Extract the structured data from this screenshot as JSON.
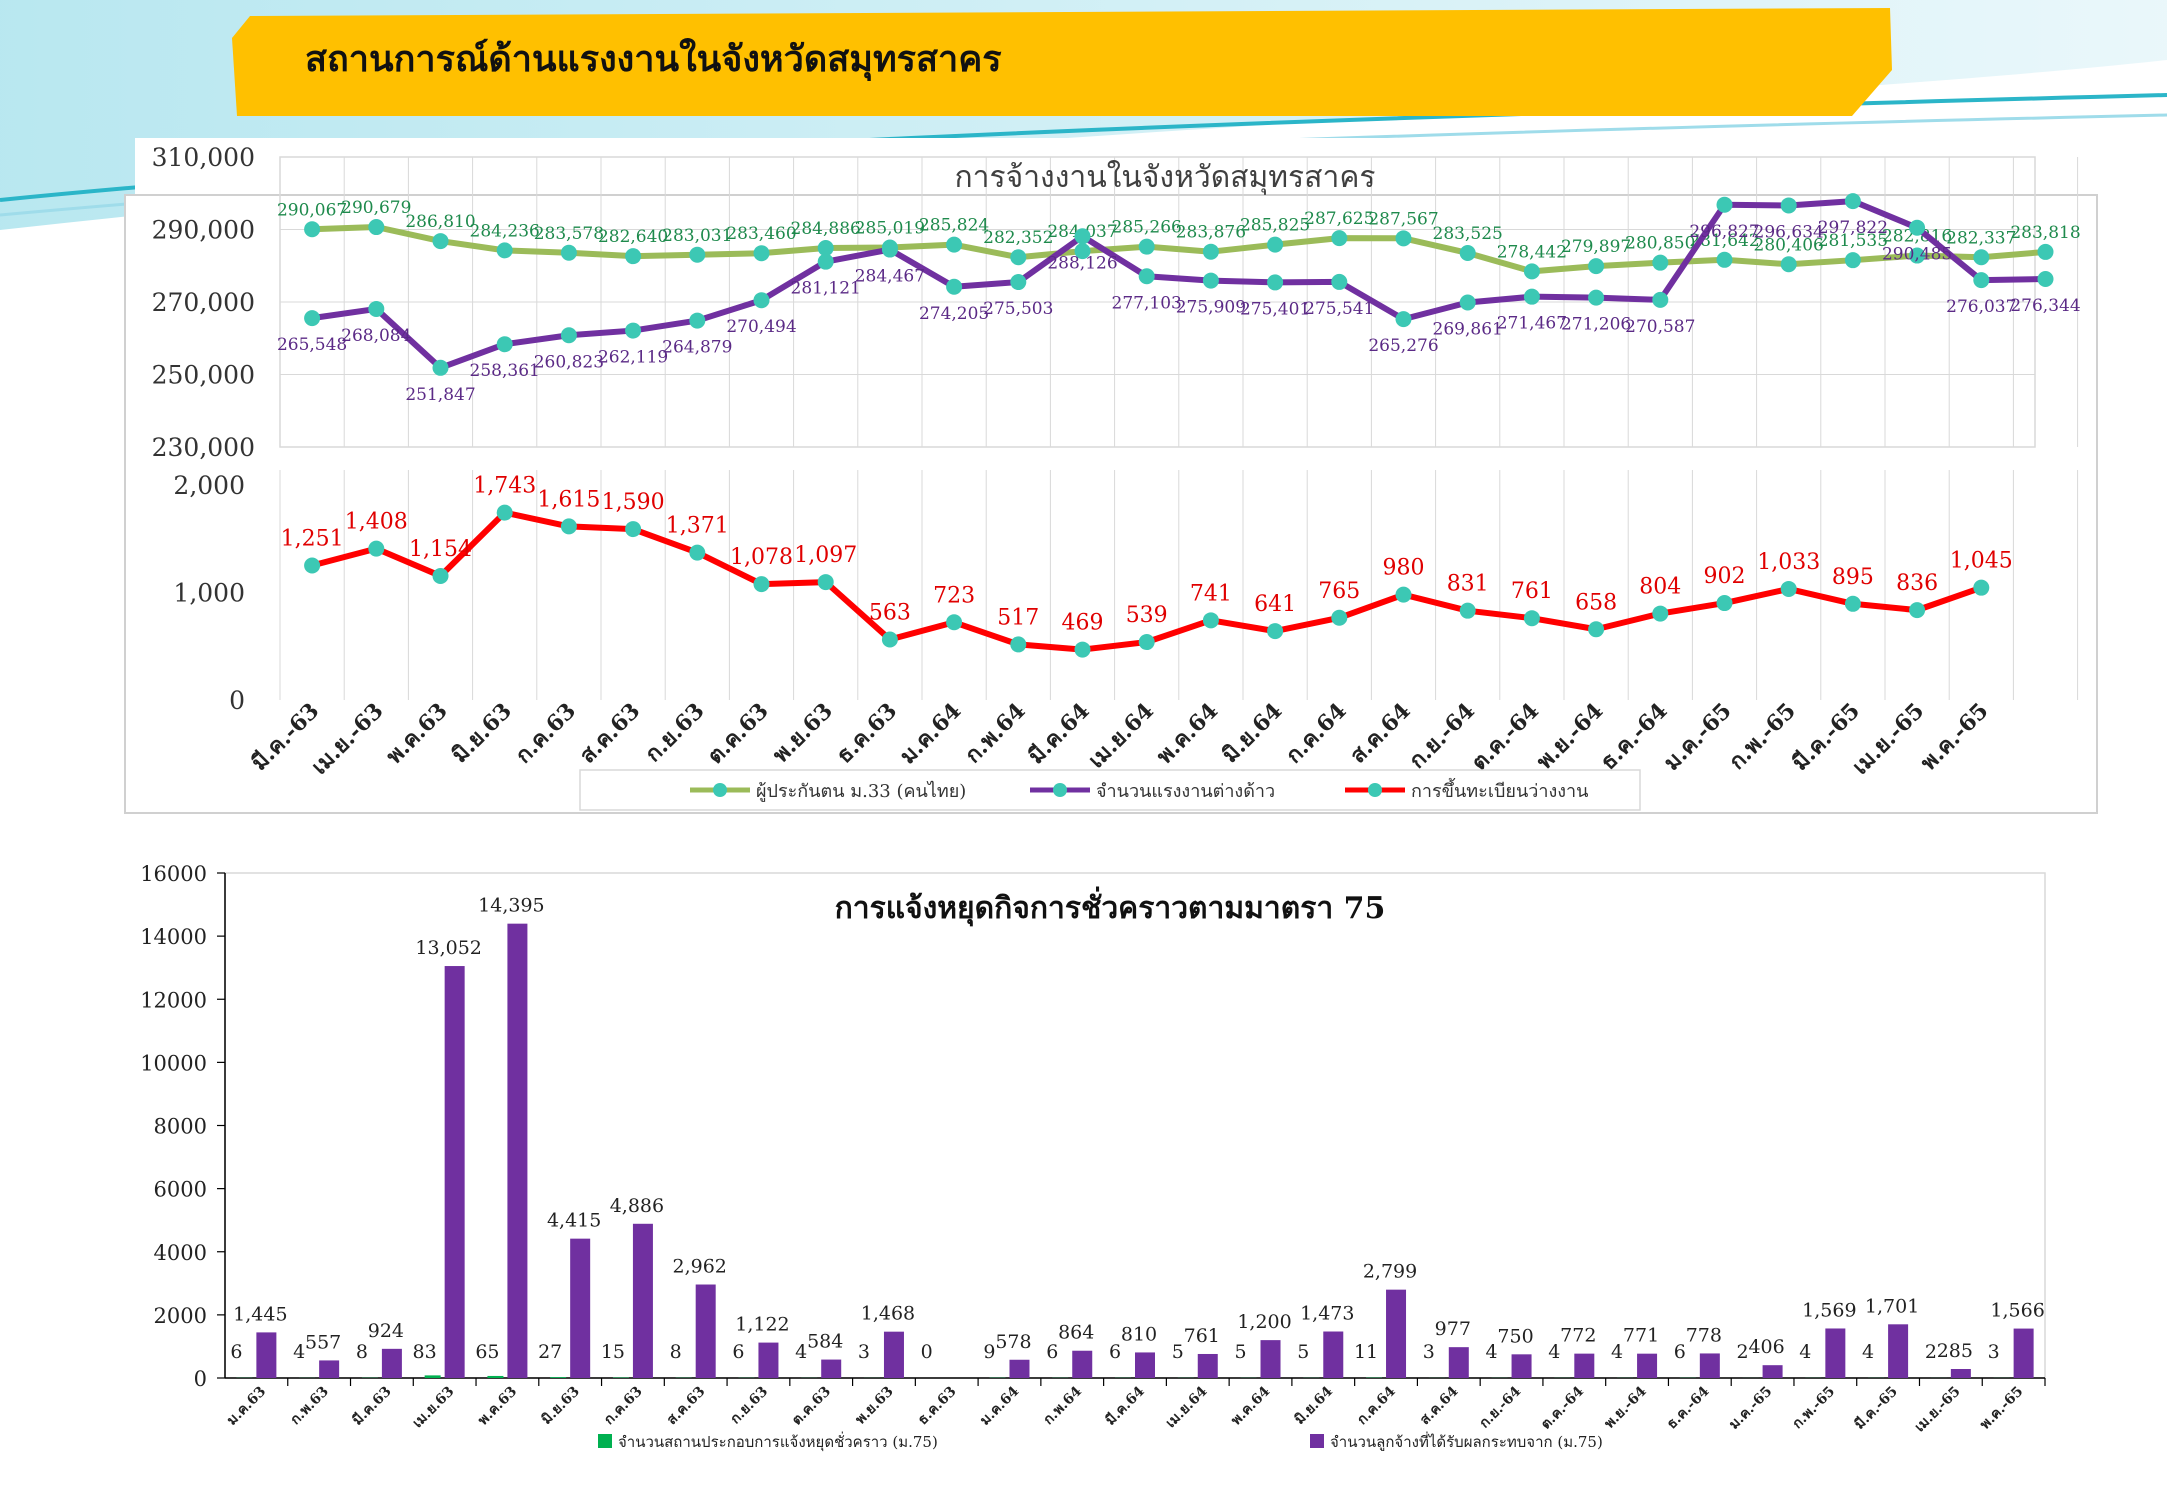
{
  "header": {
    "title": "สถานการณ์ด้านแรงงานในจังหวัดสมุทรสาคร"
  },
  "colors": {
    "banner": "#FFC000",
    "teal": "#2BB5C8",
    "olive": "#9BBB59",
    "purple": "#7030A0",
    "red": "#FF0000",
    "marker": "#3CC8B4",
    "green_bar": "#00B050"
  },
  "chart_data": [
    {
      "type": "line",
      "title": "การจ้างงานในจังหวัดสมุทรสาคร",
      "ylim": [
        230000,
        310000
      ],
      "yticks": [
        "310,000",
        "290,000",
        "270,000",
        "250,000",
        "230,000"
      ],
      "series": [
        {
          "name": "ผู้ประกันตน ม.33 (คนไทย)",
          "color": "#9BBB59",
          "values": [
            290067,
            290679,
            286810,
            284236,
            283578,
            282640,
            283031,
            283460,
            284886,
            285019,
            285824,
            282352,
            284037,
            285266,
            283876,
            285825,
            287625,
            287567,
            283525,
            278442,
            279897,
            280850,
            281642,
            280406,
            281535,
            282816,
            282337,
            283818
          ],
          "labels": [
            "290,067",
            "290,679",
            "286,810",
            "284,236",
            "283,578",
            "282,640",
            "283,031",
            "283,460",
            "284,886",
            "285,019",
            "285,824",
            "282,352",
            "284,037",
            "285,266",
            "283,876",
            "285,825",
            "287,625",
            "287,567",
            "283,525",
            "278,442",
            "279,897",
            "280,850",
            "281,642",
            "280,406",
            "281,535",
            "282,816",
            "282,337",
            "283,818"
          ]
        },
        {
          "name": "จำนวนแรงงานต่างด้าว",
          "color": "#7030A0",
          "values": [
            265548,
            268084,
            251847,
            258361,
            260823,
            262119,
            264879,
            270494,
            281121,
            284467,
            274205,
            275503,
            288126,
            277103,
            275909,
            275401,
            275541,
            265276,
            269861,
            271467,
            271206,
            270587,
            296827,
            296634,
            297822,
            290485,
            276037,
            276344
          ],
          "labels": [
            "265,548",
            "268,084",
            "251,847",
            "258,361",
            "260,823",
            "262,119",
            "264,879",
            "270,494",
            "281,121",
            "284,467",
            "274,205",
            "275,503",
            "288,126",
            "277,103",
            "275,909",
            "275,401",
            "275,541",
            "265,276",
            "269,861",
            "271,467",
            "271,206",
            "270,587",
            "296,827",
            "296,634",
            "297,822",
            "290,485",
            "276,037",
            "276,344"
          ]
        }
      ]
    },
    {
      "type": "line",
      "ylim": [
        0,
        2000
      ],
      "yticks": [
        "2,000",
        "1,000",
        "0"
      ],
      "categories": [
        "มี.ค.-63",
        "เม.ย.-63",
        "พ.ค.63",
        "มิ.ย.63",
        "ก.ค.63",
        "ส.ค.63",
        "ก.ย.63",
        "ต.ค.63",
        "พ.ย.63",
        "ธ.ค.63",
        "ม.ค.64",
        "ก.พ.64",
        "มี.ค.64",
        "เม.ย.64",
        "พ.ค.64",
        "มิ.ย.64",
        "ก.ค.64",
        "ส.ค.64",
        "ก.ย.-64",
        "ต.ค.-64",
        "พ.ย.-64",
        "ธ.ค.-64",
        "ม.ค.-65",
        "ก.พ.-65",
        "มี.ค.-65",
        "เม.ย.-65",
        "พ.ค.-65"
      ],
      "series": [
        {
          "name": "การขึ้นทะเบียนว่างงาน",
          "color": "#FF0000",
          "values": [
            1251,
            1408,
            1154,
            1743,
            1615,
            1590,
            1371,
            1078,
            1097,
            563,
            723,
            517,
            469,
            539,
            741,
            641,
            765,
            980,
            831,
            761,
            658,
            804,
            902,
            1033,
            895,
            836,
            1045
          ],
          "labels": [
            "1,251",
            "1,408",
            "1,154",
            "1,743",
            "1,615",
            "1,590",
            "1,371",
            "1,078",
            "1,097",
            "563",
            "723",
            "517",
            "469",
            "539",
            "741",
            "641",
            "765",
            "980",
            "831",
            "761",
            "658",
            "804",
            "902",
            "1,033",
            "895",
            "836",
            "1,045"
          ]
        }
      ],
      "legend": [
        "ผู้ประกันตน ม.33 (คนไทย)",
        "จำนวนแรงงานต่างด้าว",
        "การขึ้นทะเบียนว่างงาน"
      ]
    },
    {
      "type": "bar",
      "title": "การแจ้งหยุดกิจการชั่วคราวตามมาตรา 75",
      "ylim": [
        0,
        16000
      ],
      "yticks": [
        "16000",
        "14000",
        "12000",
        "10000",
        "8000",
        "6000",
        "4000",
        "2000",
        "0"
      ],
      "categories": [
        "ม.ค.63",
        "ก.พ.63",
        "มี.ค.63",
        "เม.ย.63",
        "พ.ค.63",
        "มิ.ย.63",
        "ก.ค.63",
        "ส.ค.63",
        "ก.ย.63",
        "ต.ค.63",
        "พ.ย.63",
        "ธ.ค.63",
        "ม.ค.64",
        "ก.พ.64",
        "มี.ค.64",
        "เม.ย.64",
        "พ.ค.64",
        "มิ.ย.64",
        "ก.ค.64",
        "ส.ค.64",
        "ก.ย.-64",
        "ต.ค.-64",
        "พ.ย.-64",
        "ธ.ค.-64",
        "ม.ค.-65",
        "ก.พ.-65",
        "มี.ค.-65",
        "เม.ย.-65",
        "พ.ค.-65"
      ],
      "series": [
        {
          "name": "จำนวนสถานประกอบการแจ้งหยุดชั่วคราว (ม.75)",
          "color": "#00B050",
          "values": [
            6,
            4,
            8,
            83,
            65,
            27,
            15,
            8,
            6,
            4,
            3,
            0,
            9,
            6,
            6,
            5,
            5,
            5,
            11,
            3,
            4,
            4,
            4,
            6,
            2,
            4,
            4,
            2,
            3
          ],
          "labels": [
            "6",
            "4",
            "8",
            "83",
            "65",
            "27",
            "15",
            "8",
            "6",
            "4",
            "3",
            "0",
            "9",
            "6",
            "6",
            "5",
            "5",
            "5",
            "11",
            "3",
            "4",
            "4",
            "4",
            "6",
            "2",
            "4",
            "4",
            "2",
            "3"
          ]
        },
        {
          "name": "จำนวนลูกจ้างที่ได้รับผลกระทบจาก (ม.75)",
          "color": "#7030A0",
          "values": [
            1445,
            557,
            924,
            13052,
            14395,
            4415,
            4886,
            2962,
            1122,
            584,
            1468,
            0,
            578,
            864,
            810,
            761,
            1200,
            1473,
            2799,
            977,
            750,
            772,
            771,
            778,
            406,
            1569,
            1701,
            285,
            1566
          ],
          "labels": [
            "1,445",
            "557",
            "924",
            "13,052",
            "14,395",
            "4,415",
            "4,886",
            "2,962",
            "1,122",
            "584",
            "1,468",
            "",
            "578",
            "864",
            "810",
            "761",
            "1,200",
            "1,473",
            "2,799",
            "977",
            "750",
            "772",
            "771",
            "778",
            "406",
            "1,569",
            "1,701",
            "285",
            "1,566"
          ]
        }
      ]
    }
  ]
}
